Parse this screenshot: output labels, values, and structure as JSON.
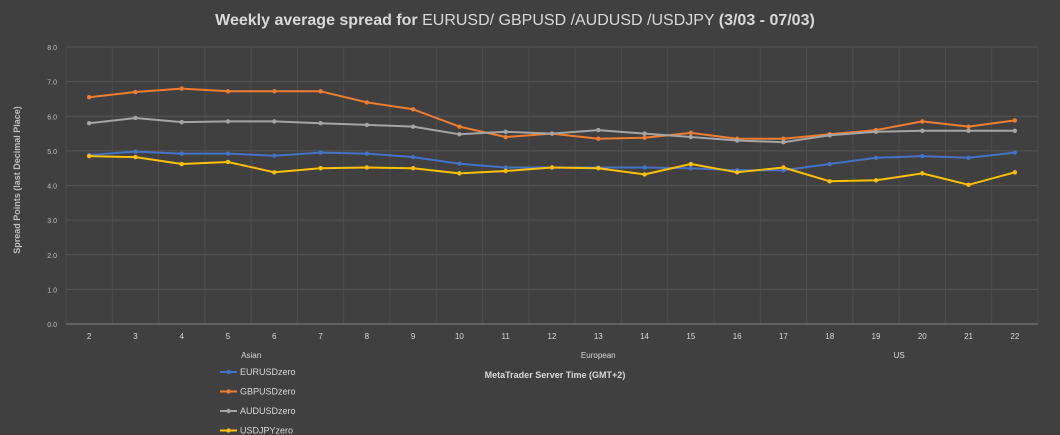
{
  "chart_data": {
    "type": "line",
    "title": {
      "part1": "Weekly average spread for ",
      "part2": "EURUSD/ GBPUSD /AUDUSD /USDJPY ",
      "part3": "(3/03 - 07/03)"
    },
    "ylabel": "Spread Points  (last Decimal Place)",
    "xlabel": "MetaTrader Server Time (GMT+2)",
    "session_labels": [
      {
        "label": "Asian",
        "at": 5.5
      },
      {
        "label": "European",
        "at": 13
      },
      {
        "label": "US",
        "at": 19.5
      }
    ],
    "ylim": [
      0,
      8
    ],
    "yticks": [
      "0.0",
      "1.0",
      "2.0",
      "3.0",
      "4.0",
      "5.0",
      "6.0",
      "7.0",
      "8.0"
    ],
    "x": [
      "2",
      "3",
      "4",
      "5",
      "6",
      "7",
      "8",
      "9",
      "10",
      "11",
      "12",
      "13",
      "14",
      "15",
      "16",
      "17",
      "18",
      "19",
      "20",
      "21",
      "22"
    ],
    "grid": true,
    "legend_position": "bottom-left",
    "series": [
      {
        "name": "EURUSDzero",
        "color": "#4472c4",
        "values": [
          4.88,
          4.98,
          4.92,
          4.92,
          4.86,
          4.95,
          4.92,
          4.82,
          4.63,
          4.52,
          4.52,
          4.52,
          4.52,
          4.5,
          4.44,
          4.44,
          4.62,
          4.8,
          4.85,
          4.8,
          4.95
        ]
      },
      {
        "name": "GBPUSDzero",
        "color": "#ed7d31",
        "values": [
          6.55,
          6.7,
          6.8,
          6.72,
          6.72,
          6.72,
          6.4,
          6.2,
          5.7,
          5.4,
          5.5,
          5.35,
          5.38,
          5.52,
          5.35,
          5.35,
          5.48,
          5.6,
          5.85,
          5.7,
          5.88
        ]
      },
      {
        "name": "AUDUSDzero",
        "color": "#a5a5a5",
        "values": [
          5.8,
          5.95,
          5.83,
          5.85,
          5.85,
          5.8,
          5.75,
          5.7,
          5.48,
          5.55,
          5.5,
          5.6,
          5.5,
          5.4,
          5.3,
          5.25,
          5.45,
          5.55,
          5.58,
          5.58,
          5.58
        ]
      },
      {
        "name": "USDJPYzero",
        "color": "#ffc000",
        "values": [
          4.85,
          4.82,
          4.62,
          4.68,
          4.38,
          4.5,
          4.52,
          4.5,
          4.35,
          4.42,
          4.52,
          4.5,
          4.32,
          4.62,
          4.38,
          4.52,
          4.12,
          4.15,
          4.35,
          4.02,
          4.38
        ]
      }
    ]
  }
}
